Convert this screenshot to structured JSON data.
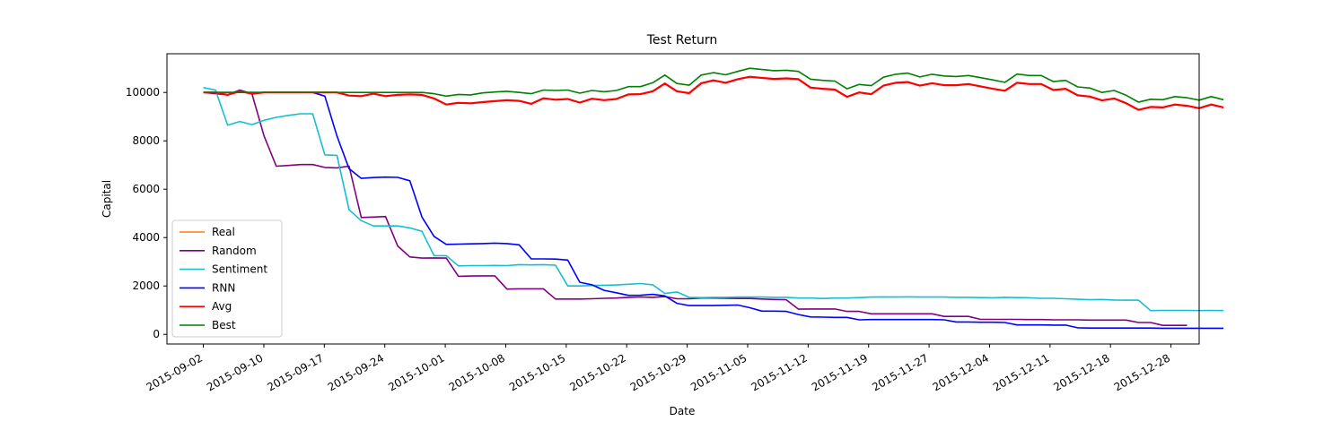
{
  "chart_data": {
    "type": "line",
    "title": "Test Return",
    "xlabel": "Date",
    "ylabel": "Capital",
    "ylim": [
      -400,
      11600
    ],
    "y_ticks": [
      0,
      2000,
      4000,
      6000,
      8000,
      10000
    ],
    "x_ticks": [
      "2015-09-02",
      "2015-09-10",
      "2015-09-17",
      "2015-09-24",
      "2015-10-01",
      "2015-10-08",
      "2015-10-15",
      "2015-10-22",
      "2015-10-29",
      "2015-11-05",
      "2015-11-12",
      "2015-11-19",
      "2015-11-27",
      "2015-12-04",
      "2015-12-11",
      "2015-12-18",
      "2015-12-28"
    ],
    "legend_position": "lower-left",
    "grid": false,
    "x_index_range": [
      -3,
      82
    ],
    "series": [
      {
        "name": "Real",
        "color": "#ff7f0e",
        "values": [
          10000,
          10000,
          9900,
          10050,
          9950,
          10000,
          10000,
          10000,
          10000,
          10000,
          10000,
          10000,
          9870,
          9850,
          9950,
          9850,
          9900,
          9920,
          9900,
          9750,
          9500,
          9570,
          9550,
          9600,
          9640,
          9680,
          9650,
          9530,
          9760,
          9700,
          9730,
          9580,
          9740,
          9680,
          9730,
          9920,
          9930,
          10050,
          10370,
          10050,
          9970,
          10380,
          10500,
          10400,
          10550,
          10650,
          10600,
          10560,
          10580,
          10550,
          10200,
          10150,
          10120,
          9820,
          10000,
          9930,
          10280,
          10400,
          10430,
          10280,
          10380,
          10300,
          10300,
          10350,
          10250,
          10150,
          10070,
          10400,
          10350,
          10350,
          10100,
          10150,
          9880,
          9830,
          9670,
          9750,
          9550,
          9280,
          9400,
          9380,
          9500,
          9450,
          9350,
          9500,
          9380
        ]
      },
      {
        "name": "Random",
        "color": "#800080",
        "values": [
          10000,
          9950,
          9900,
          10100,
          9950,
          8200,
          6950,
          6980,
          7020,
          7020,
          6900,
          6880,
          6950,
          4830,
          4850,
          4870,
          3650,
          3200,
          3150,
          3160,
          3150,
          2400,
          2410,
          2420,
          2420,
          1870,
          1880,
          1880,
          1880,
          1460,
          1460,
          1460,
          1470,
          1490,
          1500,
          1530,
          1550,
          1530,
          1560,
          1470,
          1470,
          1500,
          1500,
          1490,
          1480,
          1480,
          1460,
          1440,
          1430,
          1040,
          1050,
          1050,
          1050,
          950,
          950,
          850,
          850,
          850,
          850,
          850,
          850,
          740,
          740,
          740,
          620,
          620,
          620,
          620,
          610,
          610,
          600,
          600,
          600,
          590,
          590,
          590,
          590,
          490,
          490,
          370,
          370,
          370
        ]
      },
      {
        "name": "Sentiment",
        "color": "#17becf",
        "values": [
          10200,
          10100,
          8650,
          8800,
          8670,
          8850,
          8970,
          9050,
          9120,
          9120,
          7420,
          7400,
          5150,
          4700,
          4480,
          4480,
          4480,
          4400,
          4260,
          3250,
          3250,
          2830,
          2840,
          2840,
          2850,
          2840,
          2880,
          2870,
          2880,
          2860,
          2000,
          2000,
          2020,
          2030,
          2040,
          2070,
          2100,
          2050,
          1690,
          1750,
          1530,
          1520,
          1530,
          1530,
          1540,
          1540,
          1540,
          1530,
          1530,
          1500,
          1500,
          1480,
          1500,
          1500,
          1520,
          1540,
          1550,
          1540,
          1550,
          1540,
          1540,
          1540,
          1530,
          1530,
          1520,
          1510,
          1530,
          1520,
          1510,
          1490,
          1490,
          1470,
          1450,
          1430,
          1440,
          1420,
          1410,
          1410,
          980,
          990,
          990,
          990,
          980,
          990,
          980
        ]
      },
      {
        "name": "RNN",
        "color": "#0000ff",
        "values": [
          10000,
          10000,
          10000,
          10000,
          10000,
          10000,
          10000,
          10000,
          10000,
          10000,
          9850,
          8200,
          6850,
          6450,
          6480,
          6500,
          6490,
          6350,
          4850,
          4050,
          3720,
          3730,
          3740,
          3750,
          3770,
          3750,
          3700,
          3120,
          3120,
          3110,
          3070,
          2150,
          2050,
          1820,
          1720,
          1610,
          1620,
          1650,
          1590,
          1280,
          1190,
          1190,
          1190,
          1200,
          1210,
          1100,
          960,
          960,
          950,
          820,
          720,
          710,
          700,
          700,
          600,
          610,
          610,
          610,
          610,
          610,
          610,
          600,
          510,
          510,
          500,
          500,
          490,
          390,
          390,
          390,
          380,
          380,
          270,
          260,
          260,
          260,
          260,
          260,
          260,
          250,
          250,
          250,
          250,
          250,
          250
        ]
      },
      {
        "name": "Avg",
        "color": "#ff0000",
        "values": [
          10000,
          10000,
          9900,
          10050,
          9950,
          10000,
          10000,
          10000,
          10000,
          10000,
          10000,
          10000,
          9870,
          9850,
          9950,
          9850,
          9900,
          9920,
          9900,
          9750,
          9500,
          9570,
          9550,
          9600,
          9640,
          9680,
          9650,
          9530,
          9760,
          9700,
          9730,
          9580,
          9740,
          9680,
          9730,
          9920,
          9930,
          10050,
          10370,
          10050,
          9970,
          10380,
          10500,
          10400,
          10550,
          10650,
          10600,
          10560,
          10580,
          10550,
          10200,
          10150,
          10120,
          9820,
          10000,
          9930,
          10280,
          10400,
          10430,
          10280,
          10380,
          10300,
          10300,
          10350,
          10250,
          10150,
          10070,
          10400,
          10350,
          10350,
          10100,
          10150,
          9880,
          9830,
          9670,
          9750,
          9550,
          9280,
          9400,
          9380,
          9500,
          9450,
          9350,
          9500,
          9380
        ]
      },
      {
        "name": "Best",
        "color": "#008000",
        "values": [
          10000,
          10000,
          10000,
          10000,
          10000,
          10000,
          10000,
          10000,
          10000,
          10000,
          10000,
          10000,
          10000,
          10000,
          10000,
          10000,
          10000,
          10000,
          10000,
          9950,
          9850,
          9920,
          9900,
          9980,
          10020,
          10050,
          10000,
          9950,
          10100,
          10080,
          10100,
          9970,
          10080,
          10030,
          10080,
          10240,
          10240,
          10400,
          10720,
          10370,
          10300,
          10720,
          10820,
          10730,
          10870,
          11000,
          10950,
          10900,
          10920,
          10870,
          10550,
          10500,
          10470,
          10150,
          10330,
          10280,
          10630,
          10750,
          10800,
          10640,
          10750,
          10680,
          10660,
          10700,
          10610,
          10520,
          10420,
          10760,
          10700,
          10700,
          10450,
          10500,
          10230,
          10180,
          10000,
          10080,
          9880,
          9600,
          9720,
          9700,
          9830,
          9780,
          9680,
          9830,
          9700
        ]
      }
    ]
  }
}
